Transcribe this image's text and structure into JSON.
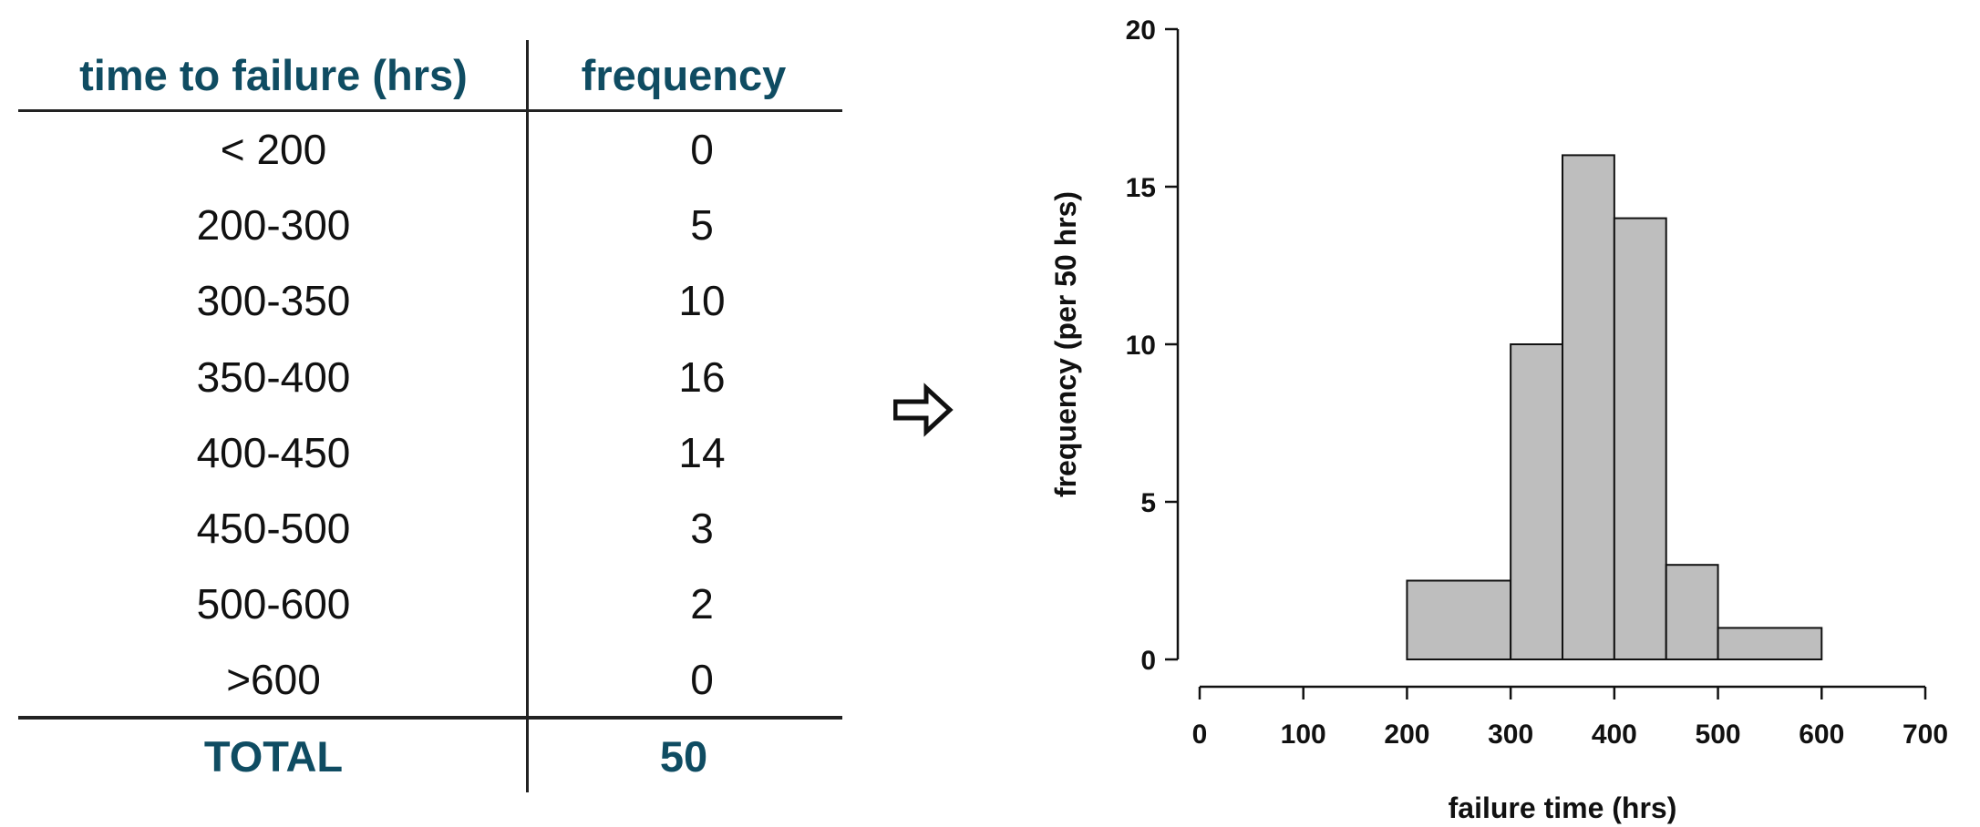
{
  "table": {
    "headers": {
      "range": "time to failure (hrs)",
      "frequency": "frequency"
    },
    "rows": [
      {
        "range": "< 200",
        "frequency": "0"
      },
      {
        "range": "200-300",
        "frequency": "5"
      },
      {
        "range": "300-350",
        "frequency": "10"
      },
      {
        "range": "350-400",
        "frequency": "16"
      },
      {
        "range": "400-450",
        "frequency": "14"
      },
      {
        "range": "450-500",
        "frequency": "3"
      },
      {
        "range": "500-600",
        "frequency": "2"
      },
      {
        "range": ">600",
        "frequency": "0"
      }
    ],
    "total": {
      "label": "TOTAL",
      "value": "50"
    },
    "accent_color": "#0f4c62"
  },
  "arrow": {
    "icon": "hollow-right-arrow-icon"
  },
  "chart_data": {
    "type": "bar",
    "subtype": "histogram",
    "xlabel": "failure time (hrs)",
    "ylabel": "frequency (per 50 hrs)",
    "xlim": [
      0,
      700
    ],
    "ylim": [
      0,
      20
    ],
    "xticks": [
      0,
      100,
      200,
      300,
      400,
      500,
      600,
      700
    ],
    "yticks": [
      0,
      5,
      10,
      15,
      20
    ],
    "bins": [
      {
        "start": 200,
        "end": 300,
        "value": 2.5
      },
      {
        "start": 300,
        "end": 350,
        "value": 10
      },
      {
        "start": 350,
        "end": 400,
        "value": 16
      },
      {
        "start": 400,
        "end": 450,
        "value": 14
      },
      {
        "start": 450,
        "end": 500,
        "value": 3
      },
      {
        "start": 500,
        "end": 600,
        "value": 1
      }
    ],
    "bar_color": "#bebebe",
    "grid": false,
    "legend": "none"
  }
}
